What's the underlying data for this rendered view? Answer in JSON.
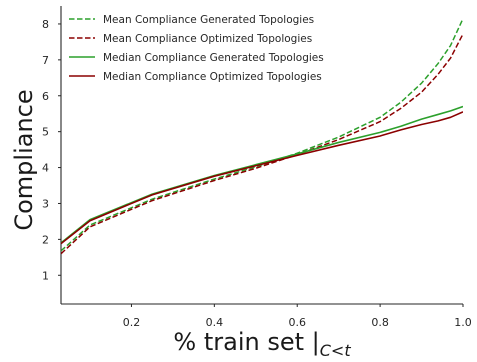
{
  "chart_data": {
    "type": "line",
    "xlabel": "% train set |",
    "xlabel_subscript": "C<t",
    "ylabel": "Compliance",
    "xlim": [
      0.03,
      1.0
    ],
    "ylim": [
      0.2,
      8.5
    ],
    "xticks": [
      0.2,
      0.4,
      0.6,
      0.8,
      1.0
    ],
    "xtick_labels": [
      "0.2",
      "0.4",
      "0.6",
      "0.8",
      "1.0"
    ],
    "yticks": [
      1,
      2,
      3,
      4,
      5,
      6,
      7,
      8
    ],
    "ytick_labels": [
      "1",
      "2",
      "3",
      "4",
      "5",
      "6",
      "7",
      "8"
    ],
    "grid": false,
    "legend_position": "top-left",
    "colors": {
      "green": "#2ca02c",
      "red": "#8b0000"
    },
    "series": [
      {
        "name": "Mean Compliance Generated Topologies",
        "color": "#2ca02c",
        "dash": true,
        "x": [
          0.03,
          0.1,
          0.25,
          0.4,
          0.5,
          0.6,
          0.7,
          0.8,
          0.85,
          0.9,
          0.94,
          0.97,
          0.99,
          1.0
        ],
        "y": [
          1.68,
          2.4,
          3.12,
          3.68,
          4.02,
          4.4,
          4.85,
          5.4,
          5.82,
          6.35,
          6.9,
          7.4,
          7.9,
          8.15
        ]
      },
      {
        "name": "Mean Compliance Optimized Topologies",
        "color": "#8b0000",
        "dash": true,
        "x": [
          0.03,
          0.1,
          0.25,
          0.4,
          0.5,
          0.6,
          0.7,
          0.8,
          0.85,
          0.9,
          0.94,
          0.97,
          0.99,
          1.0
        ],
        "y": [
          1.6,
          2.35,
          3.08,
          3.64,
          3.98,
          4.36,
          4.78,
          5.28,
          5.65,
          6.1,
          6.6,
          7.05,
          7.5,
          7.72
        ]
      },
      {
        "name": "Median Compliance Generated Topologies",
        "color": "#2ca02c",
        "dash": false,
        "x": [
          0.03,
          0.1,
          0.25,
          0.4,
          0.5,
          0.6,
          0.7,
          0.8,
          0.85,
          0.9,
          0.94,
          0.97,
          1.0
        ],
        "y": [
          1.9,
          2.55,
          3.26,
          3.78,
          4.08,
          4.38,
          4.7,
          4.98,
          5.15,
          5.35,
          5.48,
          5.58,
          5.7
        ]
      },
      {
        "name": "Median Compliance Optimized Topologies",
        "color": "#8b0000",
        "dash": false,
        "x": [
          0.03,
          0.1,
          0.25,
          0.4,
          0.5,
          0.6,
          0.7,
          0.8,
          0.85,
          0.9,
          0.94,
          0.97,
          1.0
        ],
        "y": [
          1.88,
          2.52,
          3.24,
          3.76,
          4.05,
          4.34,
          4.62,
          4.88,
          5.05,
          5.2,
          5.3,
          5.4,
          5.55
        ]
      }
    ]
  }
}
